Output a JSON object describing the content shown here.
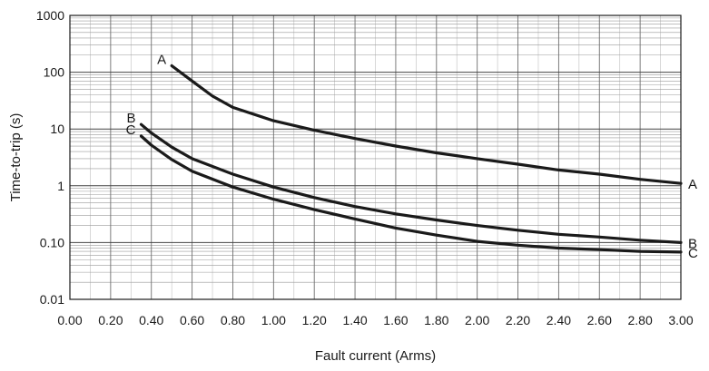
{
  "chart_data": {
    "type": "line",
    "xlabel": "Fault current (Arms)",
    "ylabel": "Time-to-trip (s)",
    "xlim": [
      0,
      3
    ],
    "ylim": [
      0.01,
      1000
    ],
    "yscale": "log",
    "grid": true,
    "x_ticks": [
      "0.00",
      "0.20",
      "0.40",
      "0.60",
      "0.80",
      "1.00",
      "1.20",
      "1.40",
      "1.60",
      "1.80",
      "2.00",
      "2.20",
      "2.40",
      "2.60",
      "2.80",
      "3.00"
    ],
    "y_ticks": [
      "0.01",
      "0.10",
      "1",
      "10",
      "100",
      "1000"
    ],
    "series": [
      {
        "name": "A",
        "color": "#1a1a1a",
        "points": [
          [
            0.5,
            130
          ],
          [
            0.6,
            70
          ],
          [
            0.7,
            38
          ],
          [
            0.8,
            24
          ],
          [
            1.0,
            14
          ],
          [
            1.2,
            9.5
          ],
          [
            1.4,
            6.8
          ],
          [
            1.6,
            5.0
          ],
          [
            1.8,
            3.8
          ],
          [
            2.0,
            3.0
          ],
          [
            2.2,
            2.4
          ],
          [
            2.4,
            1.9
          ],
          [
            2.6,
            1.6
          ],
          [
            2.8,
            1.3
          ],
          [
            3.0,
            1.1
          ]
        ]
      },
      {
        "name": "B",
        "color": "#1a1a1a",
        "points": [
          [
            0.35,
            12
          ],
          [
            0.4,
            8.5
          ],
          [
            0.5,
            4.8
          ],
          [
            0.6,
            3.0
          ],
          [
            0.8,
            1.6
          ],
          [
            1.0,
            0.95
          ],
          [
            1.2,
            0.62
          ],
          [
            1.4,
            0.43
          ],
          [
            1.6,
            0.32
          ],
          [
            1.8,
            0.25
          ],
          [
            2.0,
            0.2
          ],
          [
            2.2,
            0.165
          ],
          [
            2.4,
            0.14
          ],
          [
            2.6,
            0.125
          ],
          [
            2.8,
            0.11
          ],
          [
            3.0,
            0.1
          ]
        ]
      },
      {
        "name": "C",
        "color": "#1a1a1a",
        "points": [
          [
            0.35,
            7.5
          ],
          [
            0.4,
            5.2
          ],
          [
            0.5,
            2.9
          ],
          [
            0.6,
            1.8
          ],
          [
            0.8,
            0.95
          ],
          [
            1.0,
            0.58
          ],
          [
            1.2,
            0.38
          ],
          [
            1.4,
            0.26
          ],
          [
            1.6,
            0.18
          ],
          [
            1.8,
            0.135
          ],
          [
            2.0,
            0.105
          ],
          [
            2.2,
            0.09
          ],
          [
            2.4,
            0.08
          ],
          [
            2.6,
            0.075
          ],
          [
            2.8,
            0.07
          ],
          [
            3.0,
            0.068
          ]
        ]
      }
    ]
  }
}
